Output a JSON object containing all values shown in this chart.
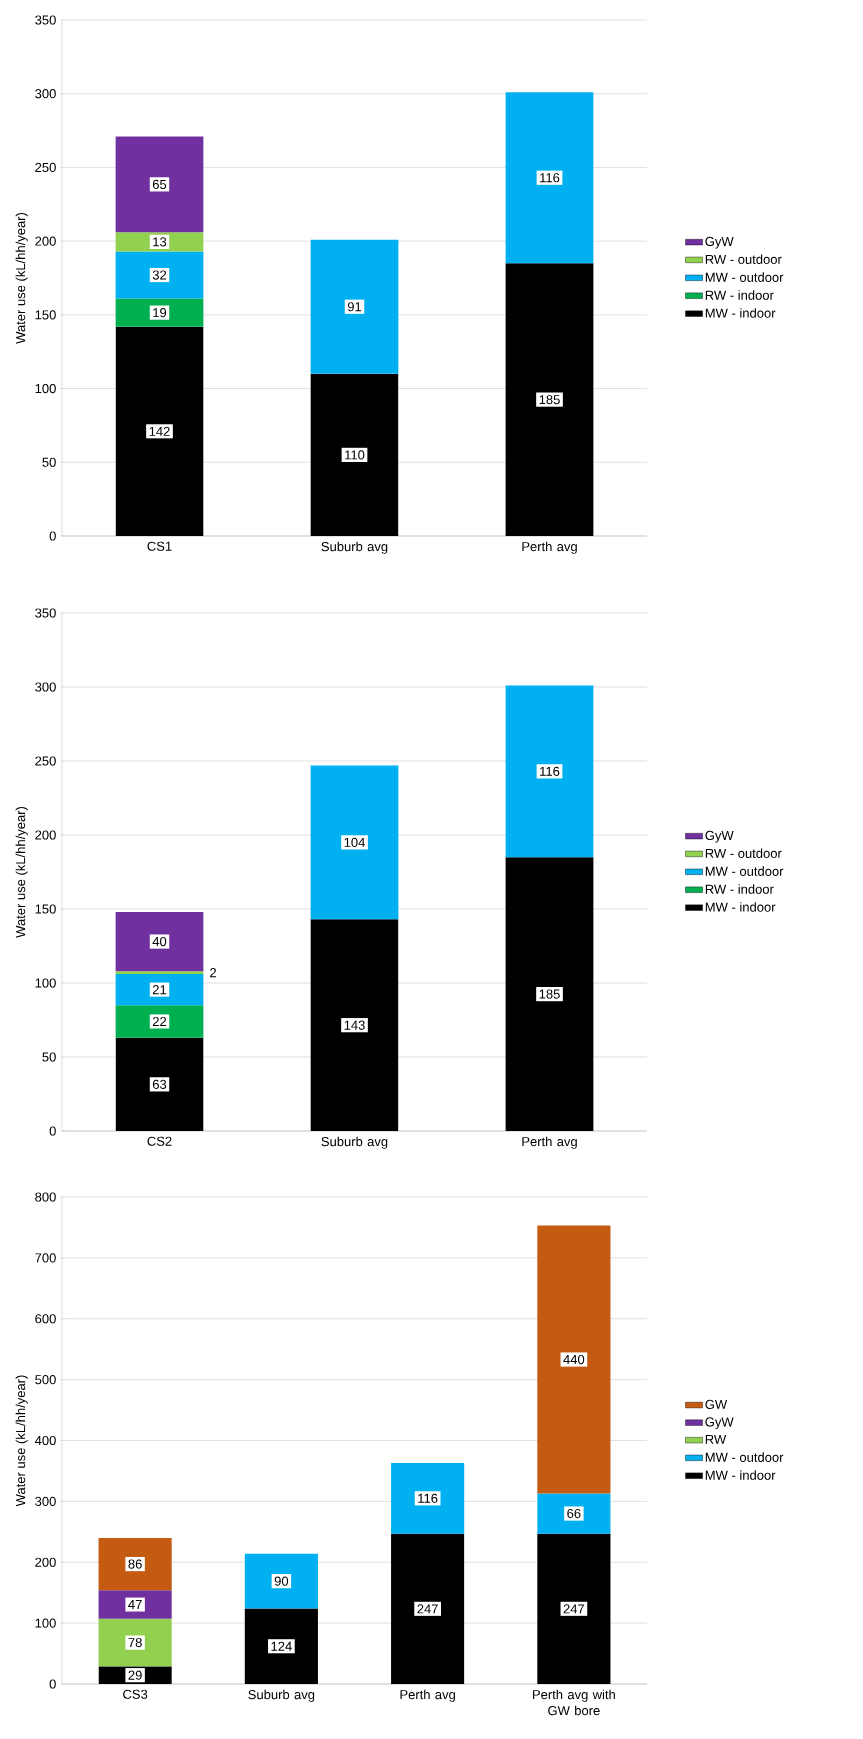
{
  "chart_data": [
    {
      "type": "bar",
      "stacked": true,
      "categories": [
        "CS1",
        "Suburb avg",
        "Perth avg"
      ],
      "ylabel": "Water use (kL/hh/year)",
      "ylim": [
        0,
        350
      ],
      "yticks": [
        0,
        50,
        100,
        150,
        200,
        250,
        300,
        350
      ],
      "grid": "y",
      "legend": "right",
      "data_labels": true,
      "series": [
        {
          "name": "MW - indoor",
          "color": "#000000",
          "values": [
            142,
            110,
            185
          ]
        },
        {
          "name": "RW - indoor",
          "color": "#00b050",
          "values": [
            19,
            null,
            null
          ]
        },
        {
          "name": "MW - outdoor",
          "color": "#00b0f0",
          "values": [
            32,
            91,
            116
          ]
        },
        {
          "name": "RW - outdoor",
          "color": "#92d050",
          "values": [
            13,
            null,
            null
          ]
        },
        {
          "name": "GyW",
          "color": "#7030a0",
          "values": [
            65,
            null,
            null
          ]
        }
      ]
    },
    {
      "type": "bar",
      "stacked": true,
      "categories": [
        "CS2",
        "Suburb avg",
        "Perth avg"
      ],
      "ylabel": "Water use (kL/hh/year)",
      "ylim": [
        0,
        350
      ],
      "yticks": [
        0,
        50,
        100,
        150,
        200,
        250,
        300,
        350
      ],
      "grid": "y",
      "legend": "right",
      "data_labels": true,
      "series": [
        {
          "name": "MW - indoor",
          "color": "#000000",
          "values": [
            63,
            143,
            185
          ]
        },
        {
          "name": "RW - indoor",
          "color": "#00b050",
          "values": [
            22,
            null,
            null
          ]
        },
        {
          "name": "MW - outdoor",
          "color": "#00b0f0",
          "values": [
            21,
            104,
            116
          ]
        },
        {
          "name": "RW - outdoor",
          "color": "#92d050",
          "values": [
            2,
            null,
            null
          ]
        },
        {
          "name": "GyW",
          "color": "#7030a0",
          "values": [
            40,
            null,
            null
          ]
        }
      ]
    },
    {
      "type": "bar",
      "stacked": true,
      "categories": [
        "CS3",
        "Suburb avg",
        "Perth avg",
        "Perth avg with GW bore"
      ],
      "ylabel": "Water use (kL/hh/year)",
      "ylim": [
        0,
        800
      ],
      "yticks": [
        0,
        100,
        200,
        300,
        400,
        500,
        600,
        700,
        800
      ],
      "grid": "y",
      "legend": "right",
      "data_labels": true,
      "series": [
        {
          "name": "MW - indoor",
          "color": "#000000",
          "values": [
            29,
            124,
            247,
            247
          ]
        },
        {
          "name": "MW - outdoor",
          "color": "#00b0f0",
          "values": [
            null,
            90,
            116,
            66
          ]
        },
        {
          "name": "RW",
          "color": "#92d050",
          "values": [
            78,
            null,
            null,
            null
          ]
        },
        {
          "name": "GyW",
          "color": "#7030a0",
          "values": [
            47,
            null,
            null,
            null
          ]
        },
        {
          "name": "GW",
          "color": "#c55a11",
          "values": [
            86,
            null,
            null,
            440
          ]
        }
      ]
    }
  ]
}
